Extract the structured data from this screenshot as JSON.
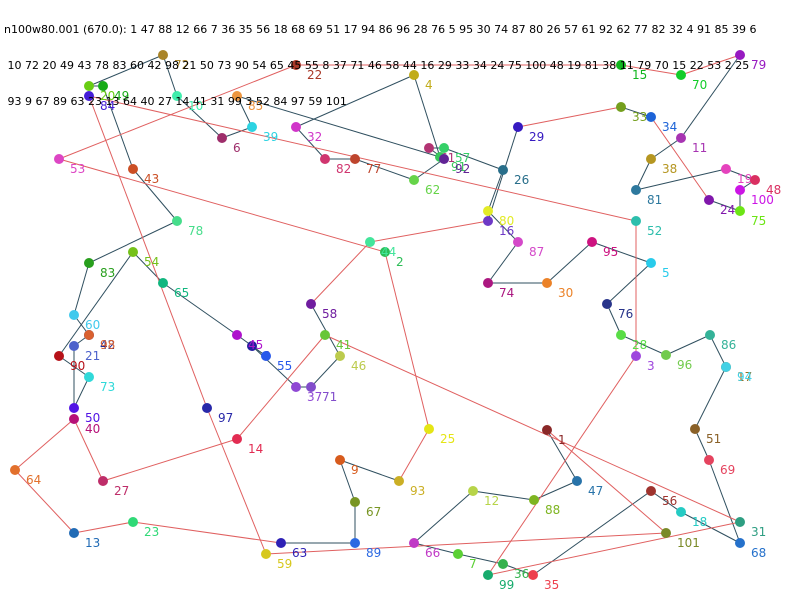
{
  "header": {
    "lines": [
      "n100w80.001 (670.0): 1 47 88 12 66 7 36 35 56 18 68 69 51 17 94 86 96 28 76 5 95 30 74 87 80 26 57 61 92 62 77 82 32 4 91 85 39 6",
      " 10 72 20 49 43 78 83 60 42 98 21 50 73 90 54 65 45 55 8 37 71 46 58 44 16 29 33 34 24 75 100 48 19 81 38 11 79 70 15 22 53 2 25",
      " 93 9 67 89 63 23 13 64 40 27 14 41 31 99 3 52 84 97 59 101"
    ]
  },
  "nodes": [
    "1",
    "2",
    "3",
    "4",
    "5",
    "6",
    "7",
    "8",
    "9",
    "10",
    "11",
    "12",
    "13",
    "14",
    "15",
    "16",
    "17",
    "18",
    "19",
    "20",
    "21",
    "22",
    "23",
    "24",
    "25",
    "26",
    "27",
    "28",
    "29",
    "30",
    "31",
    "32",
    "33",
    "34",
    "35",
    "36",
    "37",
    "38",
    "39",
    "40",
    "41",
    "42",
    "43",
    "44",
    "45",
    "46",
    "47",
    "48",
    "49",
    "50",
    "51",
    "52",
    "53",
    "54",
    "55",
    "56",
    "57",
    "58",
    "59",
    "60",
    "61",
    "62",
    "63",
    "64",
    "65",
    "66",
    "67",
    "68",
    "69",
    "70",
    "71",
    "72",
    "73",
    "74",
    "75",
    "76",
    "77",
    "78",
    "79",
    "80",
    "81",
    "82",
    "83",
    "84",
    "85",
    "86",
    "87",
    "88",
    "89",
    "90",
    "91",
    "92",
    "93",
    "94",
    "95",
    "96",
    "97",
    "98",
    "99",
    "100",
    "101"
  ]
}
